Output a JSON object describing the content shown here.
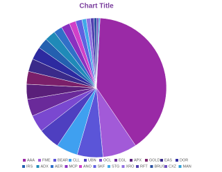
{
  "chart_data": {
    "type": "pie",
    "title": "Chart Title",
    "categories": [
      "AAA",
      "FME",
      "BEAR",
      "CLL",
      "UBN",
      "OCL",
      "EGL",
      "APX",
      "GOLD",
      "EAS",
      "DOR",
      "IRS",
      "ADX",
      "AER",
      "MCP",
      "ANO",
      "SKF",
      "STG",
      "XRO",
      "RFT",
      "BRUS",
      "CXZ",
      "MAN"
    ],
    "values": [
      40,
      8,
      6,
      5,
      5,
      4,
      4,
      3.5,
      3,
      3,
      3,
      2.5,
      2.5,
      2,
      2,
      1.5,
      1.5,
      1,
      1,
      0.8,
      0.6,
      0.5,
      0.3
    ],
    "colors": [
      "#9a2aa6",
      "#a25ad8",
      "#5b55d8",
      "#3fa0f0",
      "#4e3fc0",
      "#7a48d0",
      "#6a2a9a",
      "#5a1f7a",
      "#7b1f6a",
      "#3a2a8a",
      "#2d2aa0",
      "#2460b0",
      "#1f8ab8",
      "#3070c8",
      "#8a30c0",
      "#d040c8",
      "#6060e0",
      "#40a8e8",
      "#9070e0",
      "#5040b0",
      "#2a50a0",
      "#7050c0",
      "#30a0d8"
    ],
    "legend": "bottom"
  }
}
